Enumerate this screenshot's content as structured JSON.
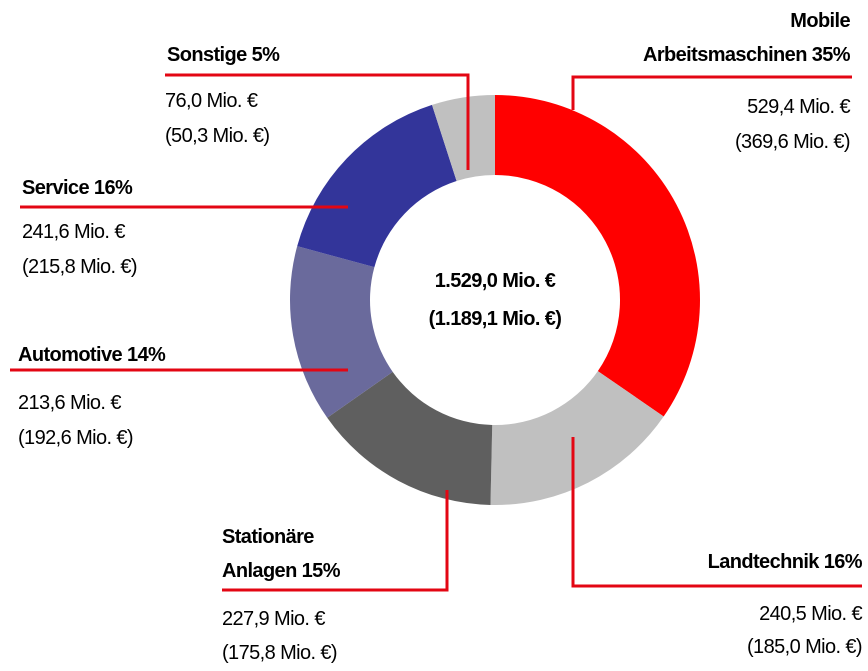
{
  "chart_data": {
    "type": "pie",
    "donut": true,
    "categories": [
      "Mobile\nArbeitsmaschinen 35%",
      "Landtechnik 16%",
      "Stationäre\nAnlagen 15%",
      "Automotive 14%",
      "Service 16%",
      "Sonstige 5%"
    ],
    "values": [
      529.4,
      240.5,
      227.9,
      213.6,
      241.6,
      76.0
    ],
    "value_labels": [
      "529,4 Mio. €",
      "240,5 Mio. €",
      "227,9 Mio. €",
      "213,6 Mio. €",
      "241,6 Mio. €",
      "76,0 Mio. €"
    ],
    "prior_value_labels": [
      "(369,6 Mio. €)",
      "(185,0 Mio. €)",
      "(175,8 Mio. €)",
      "(192,6 Mio. €)",
      "(215,8 Mio. €)",
      "(50,3 Mio. €)"
    ],
    "colors": [
      "#ff0000",
      "#c0c0c0",
      "#5f5f5f",
      "#6a6a9c",
      "#33359a",
      "#c0c0c0"
    ],
    "center_labels": [
      "1.529,0 Mio. €",
      "(1.189,1 Mio. €)"
    ]
  }
}
